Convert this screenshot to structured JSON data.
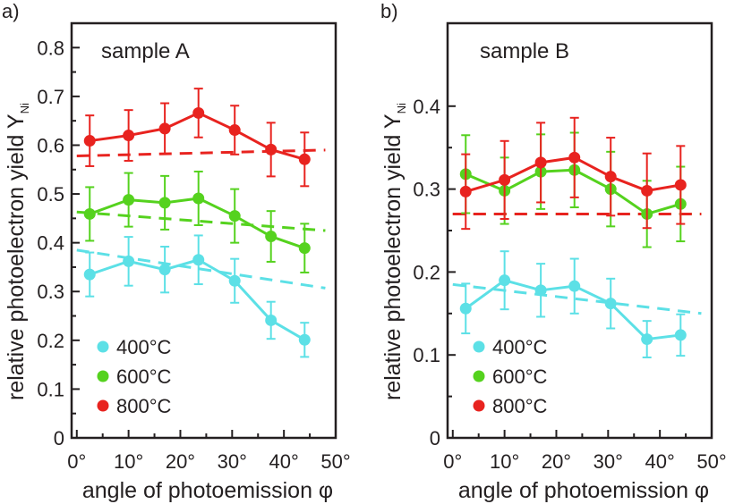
{
  "xaxis_label": "angle of photoemission φ",
  "yaxis_label": "relative photoelectron yield Y",
  "yaxis_subscript": "Ni",
  "colors": {
    "cyan": "#5ce0e6",
    "green": "#55d21e",
    "red": "#e8231f",
    "axis": "#231f20"
  },
  "chart_data": [
    {
      "type": "line",
      "panel_tag": "a)",
      "title": "sample A",
      "xlabel": "angle of photoemission φ",
      "ylabel": "relative photoelectron yield Y_Ni",
      "xlim": [
        -1,
        50
      ],
      "ylim": [
        0,
        0.85
      ],
      "xticks": [
        0,
        10,
        20,
        30,
        40,
        50
      ],
      "xtick_labels": [
        "0°",
        "10°",
        "20°",
        "30°",
        "40°",
        "50°"
      ],
      "yticks": [
        0,
        0.1,
        0.2,
        0.3,
        0.4,
        0.5,
        0.6,
        0.7,
        0.8
      ],
      "ytick_labels": [
        "0",
        "0.1",
        "0.2",
        "0.3",
        "0.4",
        "0.5",
        "0.6",
        "0.7",
        "0.8"
      ],
      "x": [
        2.5,
        10,
        17,
        23.5,
        30.5,
        37.5,
        44
      ],
      "legend_location": "bottom-left",
      "series": [
        {
          "name": "400°C",
          "color": "#5ce0e6",
          "values": [
            0.335,
            0.362,
            0.345,
            0.365,
            0.322,
            0.241,
            0.201
          ],
          "errors": [
            0.045,
            0.05,
            0.047,
            0.05,
            0.045,
            0.038,
            0.035
          ],
          "fit": [
            [
              0,
              0.385
            ],
            [
              48,
              0.307
            ]
          ]
        },
        {
          "name": "600°C",
          "color": "#55d21e",
          "values": [
            0.459,
            0.488,
            0.482,
            0.491,
            0.455,
            0.413,
            0.389
          ],
          "errors": [
            0.055,
            0.055,
            0.055,
            0.055,
            0.055,
            0.052,
            0.05
          ],
          "fit": [
            [
              0,
              0.463
            ],
            [
              48,
              0.425
            ]
          ]
        },
        {
          "name": "800°C",
          "color": "#e8231f",
          "values": [
            0.609,
            0.62,
            0.634,
            0.666,
            0.631,
            0.591,
            0.571
          ],
          "errors": [
            0.052,
            0.052,
            0.052,
            0.05,
            0.05,
            0.055,
            0.055
          ],
          "fit": [
            [
              0,
              0.578
            ],
            [
              48,
              0.59
            ]
          ]
        }
      ]
    },
    {
      "type": "line",
      "panel_tag": "b)",
      "title": "sample B",
      "xlabel": "angle of photoemission φ",
      "ylabel": "relative photoelectron yield Y_Ni",
      "xlim": [
        -1,
        50
      ],
      "ylim": [
        0,
        0.5
      ],
      "xticks": [
        0,
        10,
        20,
        30,
        40,
        50
      ],
      "xtick_labels": [
        "0°",
        "10°",
        "20°",
        "30°",
        "40°",
        "50°"
      ],
      "yticks": [
        0,
        0.1,
        0.2,
        0.3,
        0.4
      ],
      "ytick_labels": [
        "0",
        "0.1",
        "0.2",
        "0.3",
        "0.4"
      ],
      "x": [
        2.5,
        10,
        17,
        23.5,
        30.5,
        37.5,
        44
      ],
      "legend_location": "bottom-left",
      "series": [
        {
          "name": "400°C",
          "color": "#5ce0e6",
          "values": [
            0.156,
            0.19,
            0.178,
            0.183,
            0.162,
            0.119,
            0.124
          ],
          "errors": [
            0.03,
            0.035,
            0.032,
            0.033,
            0.03,
            0.022,
            0.025
          ],
          "fit": [
            [
              0,
              0.185
            ],
            [
              48,
              0.15
            ]
          ]
        },
        {
          "name": "600°C",
          "color": "#55d21e",
          "values": [
            0.318,
            0.298,
            0.321,
            0.323,
            0.3,
            0.27,
            0.282
          ],
          "errors": [
            0.047,
            0.04,
            0.045,
            0.045,
            0.045,
            0.04,
            0.045
          ],
          "fit": [
            [
              0,
              0.27
            ],
            [
              48,
              0.27
            ]
          ]
        },
        {
          "name": "800°C",
          "color": "#e8231f",
          "values": [
            0.297,
            0.311,
            0.332,
            0.338,
            0.315,
            0.298,
            0.305
          ],
          "errors": [
            0.045,
            0.047,
            0.048,
            0.048,
            0.047,
            0.045,
            0.047
          ],
          "fit": [
            [
              0,
              0.27
            ],
            [
              48,
              0.27
            ]
          ]
        }
      ]
    }
  ]
}
